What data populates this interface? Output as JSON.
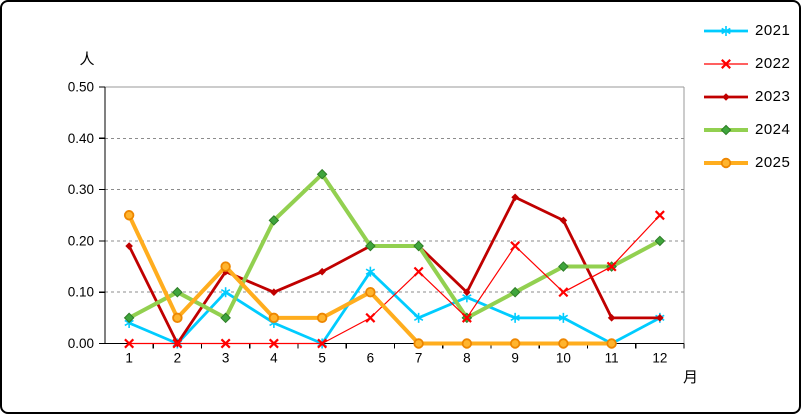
{
  "frame": {
    "background": "#FFFFFF",
    "border_color": "#000000"
  },
  "chart_data": {
    "type": "line",
    "title": "",
    "ylabel": "人",
    "xlabel": "月",
    "ylim": [
      0,
      0.5
    ],
    "ytick_labels": [
      "0.00",
      "0.10",
      "0.20",
      "0.30",
      "0.40",
      "0.50"
    ],
    "categories": [
      "1",
      "2",
      "3",
      "4",
      "5",
      "6",
      "7",
      "8",
      "9",
      "10",
      "11",
      "12"
    ],
    "grid": "horizontal-dashed",
    "grid_color": "#8C8C8C",
    "axis_color": "#000000",
    "plot_border_color": "#9A9A9A",
    "legend_position": "outside-right-top",
    "series": [
      {
        "name": "2021",
        "color": "#00CCFF",
        "marker": "asterisk",
        "line_width": 2.8,
        "values": [
          0.04,
          0.0,
          0.1,
          0.04,
          0.0,
          0.14,
          0.05,
          0.09,
          0.05,
          0.05,
          0.0,
          0.05
        ]
      },
      {
        "name": "2022",
        "color": "#FF0000",
        "marker": "x",
        "line_width": 1.2,
        "values": [
          0.0,
          0.0,
          0.0,
          0.0,
          0.0,
          0.05,
          0.14,
          0.05,
          0.19,
          0.1,
          0.15,
          0.25
        ]
      },
      {
        "name": "2023",
        "color": "#C00000",
        "marker": "diamond-small",
        "line_width": 2.8,
        "values": [
          0.19,
          0.0,
          0.14,
          0.1,
          0.14,
          0.19,
          0.19,
          0.1,
          0.285,
          0.24,
          0.05,
          0.05
        ]
      },
      {
        "name": "2024",
        "color": "#92D050",
        "marker": "diamond",
        "marker_fill": "#3FA53C",
        "marker_stroke": "#2E7D27",
        "line_width": 4,
        "values": [
          0.05,
          0.1,
          0.05,
          0.24,
          0.33,
          0.19,
          0.19,
          0.05,
          0.1,
          0.15,
          0.15,
          0.2
        ]
      },
      {
        "name": "2025",
        "color": "#FFAD1E",
        "marker": "circle",
        "marker_fill": "#FFB42E",
        "marker_stroke": "#ED8600",
        "line_width": 4,
        "values": [
          0.25,
          0.05,
          0.15,
          0.05,
          0.05,
          0.1,
          0.0,
          0.0,
          0.0,
          0.0,
          0.0,
          null
        ]
      }
    ],
    "draw_order": [
      "2021",
      "2023",
      "2024",
      "2022",
      "2025"
    ]
  }
}
